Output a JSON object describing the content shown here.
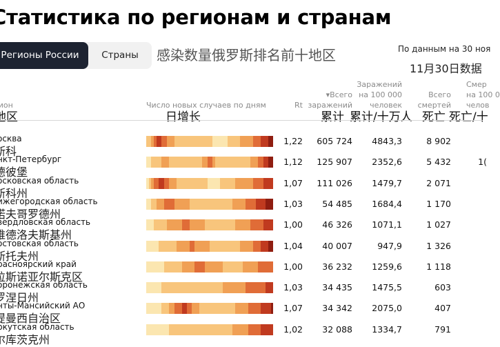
{
  "page": {
    "title": "Статистика по регионам и странам",
    "tabs": [
      {
        "label": "Регионы России",
        "active": true
      },
      {
        "label": "Страны",
        "active": false
      }
    ],
    "subtitle_cn": "感染数量俄罗斯排名前十地区",
    "date_note": "По данным на 30 ноя",
    "date_note_cn": "11月30日数据"
  },
  "columns": {
    "region": "гион",
    "region_cn": "地区",
    "daily": "Число новых случаев по дням",
    "daily_cn": "日增长",
    "rt": "Rt",
    "total_line1": "▾Всего",
    "total_line2": "заражений",
    "total_cn": "累计",
    "per100k_line1": "Заражений",
    "per100k_line2": "на 100 000",
    "per100k_line3": "человек",
    "per100k_cn": "累计/十万人",
    "deaths_line1": "Всего",
    "deaths_line2": "смертей",
    "deaths_cn": "死亡",
    "extra_line1": "Смер",
    "extra_line2": "на 100 0",
    "extra_line3": "челов",
    "extra_cn": "死亡/十"
  },
  "heat_palette": [
    "#fbe6b0",
    "#f8c57c",
    "#f0a055",
    "#e06c37",
    "#c03a1f",
    "#8f1d10"
  ],
  "rows": [
    {
      "name": "осква",
      "name_cn": "斯科",
      "rt": "1,22",
      "total": "605 724",
      "per100k": "4843,3",
      "deaths": "8 902",
      "extra": "",
      "daily": [
        1,
        1,
        2,
        3,
        4,
        4,
        3,
        3,
        2,
        2,
        2,
        1,
        1,
        1,
        1,
        1,
        1,
        1,
        1,
        1,
        1,
        1,
        1,
        1,
        1,
        1,
        0,
        0,
        0,
        0,
        0,
        0,
        1,
        1,
        1,
        1,
        1,
        2,
        2,
        2,
        2,
        2,
        3,
        3,
        3,
        4,
        4,
        4,
        5,
        5
      ]
    },
    {
      "name": "нкт-Петербург",
      "name_cn": "德彼堡",
      "rt": "1,12",
      "total": "125 907",
      "per100k": "2352,6",
      "deaths": "5 432",
      "extra": "1(",
      "daily": [
        0,
        0,
        1,
        1,
        1,
        1,
        2,
        2,
        2,
        1,
        1,
        1,
        1,
        1,
        1,
        1,
        1,
        1,
        1,
        1,
        1,
        1,
        2,
        2,
        3,
        3,
        2,
        1,
        1,
        1,
        1,
        1,
        1,
        1,
        1,
        1,
        1,
        1,
        1,
        1,
        1,
        2,
        2,
        2,
        3,
        3,
        4,
        4,
        5,
        5
      ]
    },
    {
      "name": "осковская область",
      "name_cn": "斯科州",
      "rt": "1,07",
      "total": "111 026",
      "per100k": "1479,7",
      "deaths": "2 071",
      "extra": "",
      "daily": [
        0,
        1,
        2,
        3,
        3,
        4,
        4,
        3,
        3,
        2,
        2,
        2,
        1,
        1,
        1,
        1,
        1,
        1,
        1,
        1,
        1,
        1,
        1,
        1,
        0,
        0,
        0,
        0,
        0,
        1,
        1,
        1,
        1,
        1,
        1,
        2,
        2,
        2,
        2,
        2,
        2,
        2,
        3,
        3,
        3,
        3,
        4,
        4,
        4,
        4
      ]
    },
    {
      "name": "ижегородская область",
      "name_cn": "诺夫哥罗德州",
      "rt": "1,03",
      "total": "54 485",
      "per100k": "1684,4",
      "deaths": "1 170",
      "extra": "",
      "daily": [
        0,
        0,
        1,
        1,
        2,
        2,
        2,
        3,
        3,
        3,
        3,
        2,
        2,
        2,
        2,
        2,
        2,
        1,
        1,
        1,
        1,
        1,
        1,
        1,
        1,
        1,
        1,
        1,
        1,
        1,
        1,
        1,
        1,
        1,
        2,
        2,
        2,
        2,
        2,
        3,
        3,
        3,
        3,
        4,
        4,
        4,
        4,
        5,
        5,
        5
      ]
    },
    {
      "name": "вердловская область",
      "name_cn": "维德洛夫斯基州",
      "rt": "1,00",
      "total": "46 326",
      "per100k": "1071,1",
      "deaths": "1 027",
      "extra": "",
      "daily": [
        0,
        0,
        0,
        1,
        1,
        1,
        1,
        1,
        2,
        2,
        2,
        2,
        2,
        2,
        3,
        3,
        3,
        2,
        2,
        2,
        2,
        2,
        2,
        1,
        1,
        1,
        1,
        1,
        1,
        1,
        1,
        1,
        1,
        1,
        1,
        2,
        2,
        2,
        2,
        2,
        2,
        3,
        3,
        3,
        3,
        3,
        4,
        4,
        4,
        4
      ]
    },
    {
      "name": "остовская область",
      "name_cn": "斯托夫州",
      "rt": "1,04",
      "total": "40 007",
      "per100k": "947,9",
      "deaths": "1 326",
      "extra": "",
      "daily": [
        0,
        0,
        0,
        0,
        0,
        1,
        1,
        1,
        1,
        1,
        1,
        1,
        2,
        2,
        2,
        2,
        2,
        3,
        3,
        2,
        2,
        2,
        2,
        2,
        2,
        1,
        1,
        1,
        1,
        1,
        1,
        1,
        1,
        1,
        1,
        1,
        1,
        2,
        2,
        2,
        2,
        2,
        3,
        3,
        3,
        4,
        4,
        4,
        5,
        5
      ]
    },
    {
      "name": "расноярский край",
      "name_cn": "拉斯诺亚尔斯克区",
      "rt": "1,00",
      "total": "36 232",
      "per100k": "1259,6",
      "deaths": "1 118",
      "extra": "",
      "daily": [
        0,
        0,
        0,
        0,
        0,
        0,
        0,
        1,
        1,
        1,
        1,
        1,
        1,
        1,
        2,
        2,
        2,
        2,
        2,
        3,
        3,
        3,
        3,
        2,
        2,
        2,
        2,
        2,
        2,
        2,
        1,
        1,
        1,
        1,
        1,
        1,
        1,
        1,
        2,
        2,
        2,
        2,
        2,
        2,
        3,
        3,
        3,
        3,
        3,
        3
      ]
    },
    {
      "name": "оронежская область",
      "name_cn": "罗涅日州",
      "rt": "1,03",
      "total": "34 435",
      "per100k": "1475,5",
      "deaths": "603",
      "extra": "",
      "daily": [
        0,
        0,
        0,
        0,
        0,
        0,
        1,
        1,
        1,
        1,
        1,
        1,
        1,
        1,
        1,
        1,
        1,
        1,
        1,
        1,
        1,
        1,
        1,
        1,
        1,
        1,
        1,
        1,
        1,
        1,
        2,
        2,
        2,
        2,
        2,
        2,
        2,
        2,
        2,
        3,
        3,
        3,
        3,
        3,
        3,
        3,
        3,
        4,
        4,
        4
      ]
    },
    {
      "name": "нты-Мансийский АО",
      "name_cn": "提曼西自治区",
      "rt": "1,07",
      "total": "34 342",
      "per100k": "2075,0",
      "deaths": "407",
      "extra": "",
      "daily": [
        0,
        0,
        0,
        0,
        0,
        0,
        1,
        1,
        1,
        2,
        2,
        3,
        3,
        3,
        4,
        4,
        3,
        3,
        2,
        2,
        2,
        1,
        1,
        1,
        1,
        1,
        1,
        1,
        1,
        1,
        1,
        1,
        1,
        1,
        1,
        2,
        2,
        2,
        2,
        2,
        3,
        3,
        3,
        3,
        3,
        4,
        4,
        4,
        4,
        5
      ]
    },
    {
      "name": "ркутская область",
      "name_cn": "尔库茨克州",
      "rt": "1,02",
      "total": "32 088",
      "per100k": "1334,7",
      "deaths": "791",
      "extra": "",
      "daily": [
        0,
        0,
        0,
        0,
        0,
        0,
        0,
        0,
        0,
        1,
        1,
        1,
        1,
        1,
        1,
        1,
        1,
        1,
        1,
        1,
        1,
        1,
        1,
        1,
        1,
        1,
        1,
        1,
        1,
        1,
        1,
        1,
        1,
        1,
        2,
        2,
        2,
        2,
        2,
        2,
        3,
        3,
        3,
        3,
        3,
        4,
        4,
        4,
        4,
        4
      ]
    }
  ]
}
